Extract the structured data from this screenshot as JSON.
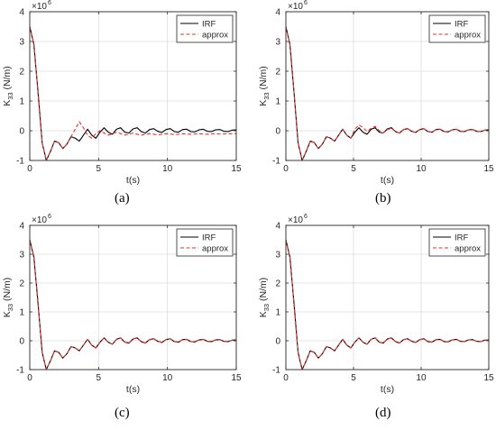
{
  "chart_data": [
    {
      "panel": "(a)",
      "type": "line",
      "xlabel": "t(s)",
      "ylabel_main": "K",
      "ylabel_sub": "33",
      "ylabel_unit": " (N/m)",
      "y_exponent_label": "×10",
      "y_exponent_power": "6",
      "xlim": [
        0,
        15
      ],
      "ylim": [
        -1,
        4
      ],
      "xticks": [
        0,
        5,
        10,
        15
      ],
      "yticks": [
        -1,
        0,
        1,
        2,
        3,
        4
      ],
      "grid": true,
      "legend_position": "top-right",
      "series": [
        {
          "name": "IRF",
          "color": "#000000",
          "dash": "solid",
          "x": [
            0,
            0.3,
            0.6,
            0.9,
            1.2,
            1.5,
            1.8,
            2.1,
            2.4,
            2.7,
            3.0,
            3.3,
            3.6,
            3.9,
            4.2,
            4.5,
            4.8,
            5.1,
            5.4,
            5.7,
            6.0,
            6.3,
            6.6,
            6.9,
            7.2,
            7.5,
            7.8,
            8.1,
            8.4,
            8.7,
            9.0,
            9.3,
            9.6,
            9.9,
            10.2,
            10.5,
            10.8,
            11.1,
            11.4,
            11.7,
            12.0,
            12.3,
            12.6,
            12.9,
            13.2,
            13.5,
            13.8,
            14.1,
            14.4,
            14.7,
            15.0
          ],
          "y": [
            3.5,
            2.9,
            1.3,
            -0.4,
            -1.0,
            -0.7,
            -0.35,
            -0.4,
            -0.6,
            -0.45,
            -0.2,
            -0.25,
            -0.35,
            -0.15,
            0.05,
            -0.15,
            -0.25,
            -0.05,
            0.1,
            -0.05,
            -0.12,
            0.05,
            0.1,
            -0.05,
            -0.08,
            0.06,
            0.1,
            -0.03,
            -0.08,
            0.04,
            0.07,
            -0.02,
            -0.06,
            0.04,
            0.07,
            -0.03,
            -0.05,
            0.04,
            0.05,
            -0.03,
            -0.04,
            0.03,
            0.05,
            -0.02,
            -0.03,
            0.03,
            0.04,
            -0.02,
            -0.03,
            0.02,
            0.03
          ]
        },
        {
          "name": "approx",
          "color": "#e8302c",
          "dash": "dashed",
          "x": [
            0,
            0.3,
            0.6,
            0.9,
            1.2,
            1.5,
            1.8,
            2.1,
            2.4,
            2.7,
            3.0,
            3.3,
            3.6,
            3.9,
            4.2,
            4.5,
            4.8,
            5.1,
            5.4,
            5.7,
            6.0,
            6.3,
            6.6,
            6.9,
            7.2,
            7.5,
            7.8,
            8.1,
            8.4,
            8.7,
            9.0,
            9.3,
            9.6,
            9.9,
            10.2,
            10.5,
            10.8,
            11.1,
            11.4,
            11.7,
            12.0,
            12.3,
            12.6,
            12.9,
            13.2,
            13.5,
            13.8,
            14.1,
            14.4,
            14.7,
            15.0
          ],
          "y": [
            3.5,
            2.9,
            1.3,
            -0.4,
            -1.0,
            -0.7,
            -0.35,
            -0.4,
            -0.6,
            -0.45,
            -0.2,
            0.05,
            0.3,
            0.1,
            -0.15,
            -0.25,
            -0.1,
            0.0,
            -0.08,
            -0.15,
            -0.1,
            -0.05,
            -0.1,
            -0.15,
            -0.12,
            -0.08,
            -0.12,
            -0.15,
            -0.12,
            -0.1,
            -0.12,
            -0.14,
            -0.12,
            -0.1,
            -0.11,
            -0.13,
            -0.12,
            -0.1,
            -0.11,
            -0.12,
            -0.11,
            -0.1,
            -0.11,
            -0.12,
            -0.11,
            -0.1,
            -0.11,
            -0.11,
            -0.1,
            -0.1,
            -0.1
          ]
        }
      ]
    },
    {
      "panel": "(b)",
      "type": "line",
      "xlabel": "t(s)",
      "ylabel_main": "K",
      "ylabel_sub": "33",
      "ylabel_unit": " (N/m)",
      "y_exponent_label": "×10",
      "y_exponent_power": "6",
      "xlim": [
        0,
        15
      ],
      "ylim": [
        -1,
        4
      ],
      "xticks": [
        0,
        5,
        10,
        15
      ],
      "yticks": [
        -1,
        0,
        1,
        2,
        3,
        4
      ],
      "grid": true,
      "legend_position": "top-right",
      "series": [
        {
          "name": "IRF",
          "color": "#000000",
          "dash": "solid",
          "x": [
            0,
            0.3,
            0.6,
            0.9,
            1.2,
            1.5,
            1.8,
            2.1,
            2.4,
            2.7,
            3.0,
            3.3,
            3.6,
            3.9,
            4.2,
            4.5,
            4.8,
            5.1,
            5.4,
            5.7,
            6.0,
            6.3,
            6.6,
            6.9,
            7.2,
            7.5,
            7.8,
            8.1,
            8.4,
            8.7,
            9.0,
            9.3,
            9.6,
            9.9,
            10.2,
            10.5,
            10.8,
            11.1,
            11.4,
            11.7,
            12.0,
            12.3,
            12.6,
            12.9,
            13.2,
            13.5,
            13.8,
            14.1,
            14.4,
            14.7,
            15.0
          ],
          "y": [
            3.5,
            2.9,
            1.3,
            -0.4,
            -1.0,
            -0.7,
            -0.35,
            -0.4,
            -0.6,
            -0.45,
            -0.2,
            -0.25,
            -0.35,
            -0.15,
            0.05,
            -0.15,
            -0.25,
            -0.05,
            0.1,
            -0.05,
            -0.12,
            0.05,
            0.1,
            -0.05,
            -0.08,
            0.06,
            0.1,
            -0.03,
            -0.08,
            0.04,
            0.07,
            -0.02,
            -0.06,
            0.04,
            0.07,
            -0.03,
            -0.05,
            0.04,
            0.05,
            -0.03,
            -0.04,
            0.03,
            0.05,
            -0.02,
            -0.03,
            0.03,
            0.04,
            -0.02,
            -0.03,
            0.02,
            0.03
          ]
        },
        {
          "name": "approx",
          "color": "#e8302c",
          "dash": "dashed",
          "x": [
            0,
            0.3,
            0.6,
            0.9,
            1.2,
            1.5,
            1.8,
            2.1,
            2.4,
            2.7,
            3.0,
            3.3,
            3.6,
            3.9,
            4.2,
            4.5,
            4.8,
            5.1,
            5.4,
            5.7,
            6.0,
            6.3,
            6.6,
            6.9,
            7.2,
            7.5,
            7.8,
            8.1,
            8.4,
            8.7,
            9.0,
            9.3,
            9.6,
            9.9,
            10.2,
            10.5,
            10.8,
            11.1,
            11.4,
            11.7,
            12.0,
            12.3,
            12.6,
            12.9,
            13.2,
            13.5,
            13.8,
            14.1,
            14.4,
            14.7,
            15.0
          ],
          "y": [
            3.5,
            2.9,
            1.3,
            -0.4,
            -1.0,
            -0.7,
            -0.35,
            -0.4,
            -0.6,
            -0.45,
            -0.2,
            -0.25,
            -0.35,
            -0.15,
            0.05,
            -0.15,
            -0.25,
            0.05,
            0.2,
            0.1,
            -0.02,
            0.08,
            0.15,
            0.0,
            -0.08,
            0.04,
            0.08,
            -0.03,
            -0.08,
            0.04,
            0.07,
            -0.02,
            -0.06,
            0.04,
            0.07,
            -0.03,
            -0.05,
            0.04,
            0.05,
            -0.03,
            -0.04,
            0.03,
            0.05,
            -0.02,
            -0.03,
            0.03,
            0.04,
            -0.02,
            -0.03,
            0.02,
            0.03
          ]
        }
      ]
    },
    {
      "panel": "(c)",
      "type": "line",
      "xlabel": "t(s)",
      "ylabel_main": "K",
      "ylabel_sub": "33",
      "ylabel_unit": " (N/m)",
      "y_exponent_label": "×10",
      "y_exponent_power": "6",
      "xlim": [
        0,
        15
      ],
      "ylim": [
        -1,
        4
      ],
      "xticks": [
        0,
        5,
        10,
        15
      ],
      "yticks": [
        -1,
        0,
        1,
        2,
        3,
        4
      ],
      "grid": true,
      "legend_position": "top-right",
      "series": [
        {
          "name": "IRF",
          "color": "#000000",
          "dash": "solid",
          "x": [
            0,
            0.3,
            0.6,
            0.9,
            1.2,
            1.5,
            1.8,
            2.1,
            2.4,
            2.7,
            3.0,
            3.3,
            3.6,
            3.9,
            4.2,
            4.5,
            4.8,
            5.1,
            5.4,
            5.7,
            6.0,
            6.3,
            6.6,
            6.9,
            7.2,
            7.5,
            7.8,
            8.1,
            8.4,
            8.7,
            9.0,
            9.3,
            9.6,
            9.9,
            10.2,
            10.5,
            10.8,
            11.1,
            11.4,
            11.7,
            12.0,
            12.3,
            12.6,
            12.9,
            13.2,
            13.5,
            13.8,
            14.1,
            14.4,
            14.7,
            15.0
          ],
          "y": [
            3.5,
            2.9,
            1.3,
            -0.4,
            -1.0,
            -0.7,
            -0.35,
            -0.4,
            -0.6,
            -0.45,
            -0.2,
            -0.25,
            -0.35,
            -0.15,
            0.05,
            -0.15,
            -0.25,
            -0.05,
            0.1,
            -0.05,
            -0.12,
            0.05,
            0.1,
            -0.05,
            -0.08,
            0.06,
            0.1,
            -0.03,
            -0.08,
            0.04,
            0.07,
            -0.02,
            -0.06,
            0.04,
            0.07,
            -0.03,
            -0.05,
            0.04,
            0.05,
            -0.03,
            -0.04,
            0.03,
            0.05,
            -0.02,
            -0.03,
            0.03,
            0.04,
            -0.02,
            -0.03,
            0.02,
            0.03
          ]
        },
        {
          "name": "approx",
          "color": "#e8302c",
          "dash": "dashed",
          "x": [
            0,
            0.3,
            0.6,
            0.9,
            1.2,
            1.5,
            1.8,
            2.1,
            2.4,
            2.7,
            3.0,
            3.3,
            3.6,
            3.9,
            4.2,
            4.5,
            4.8,
            5.1,
            5.4,
            5.7,
            6.0,
            6.3,
            6.6,
            6.9,
            7.2,
            7.5,
            7.8,
            8.1,
            8.4,
            8.7,
            9.0,
            9.3,
            9.6,
            9.9,
            10.2,
            10.5,
            10.8,
            11.1,
            11.4,
            11.7,
            12.0,
            12.3,
            12.6,
            12.9,
            13.2,
            13.5,
            13.8,
            14.1,
            14.4,
            14.7,
            15.0
          ],
          "y": [
            3.5,
            2.9,
            1.3,
            -0.4,
            -1.0,
            -0.7,
            -0.35,
            -0.4,
            -0.6,
            -0.45,
            -0.2,
            -0.25,
            -0.35,
            -0.15,
            0.05,
            -0.15,
            -0.25,
            -0.05,
            0.1,
            -0.05,
            -0.12,
            0.05,
            0.1,
            -0.05,
            -0.08,
            0.06,
            0.1,
            -0.03,
            -0.08,
            0.04,
            0.07,
            -0.02,
            -0.06,
            0.04,
            0.07,
            -0.03,
            -0.05,
            0.04,
            0.05,
            -0.03,
            -0.04,
            0.03,
            0.05,
            -0.02,
            -0.03,
            0.03,
            0.04,
            -0.02,
            -0.03,
            0.02,
            0.03
          ]
        }
      ]
    },
    {
      "panel": "(d)",
      "type": "line",
      "xlabel": "t(s)",
      "ylabel_main": "K",
      "ylabel_sub": "33",
      "ylabel_unit": " (N/m)",
      "y_exponent_label": "×10",
      "y_exponent_power": "6",
      "xlim": [
        0,
        15
      ],
      "ylim": [
        -1,
        4
      ],
      "xticks": [
        0,
        5,
        10,
        15
      ],
      "yticks": [
        -1,
        0,
        1,
        2,
        3,
        4
      ],
      "grid": true,
      "legend_position": "top-right",
      "series": [
        {
          "name": "IRF",
          "color": "#000000",
          "dash": "solid",
          "x": [
            0,
            0.3,
            0.6,
            0.9,
            1.2,
            1.5,
            1.8,
            2.1,
            2.4,
            2.7,
            3.0,
            3.3,
            3.6,
            3.9,
            4.2,
            4.5,
            4.8,
            5.1,
            5.4,
            5.7,
            6.0,
            6.3,
            6.6,
            6.9,
            7.2,
            7.5,
            7.8,
            8.1,
            8.4,
            8.7,
            9.0,
            9.3,
            9.6,
            9.9,
            10.2,
            10.5,
            10.8,
            11.1,
            11.4,
            11.7,
            12.0,
            12.3,
            12.6,
            12.9,
            13.2,
            13.5,
            13.8,
            14.1,
            14.4,
            14.7,
            15.0
          ],
          "y": [
            3.5,
            2.9,
            1.3,
            -0.4,
            -1.0,
            -0.7,
            -0.35,
            -0.4,
            -0.6,
            -0.45,
            -0.2,
            -0.25,
            -0.35,
            -0.15,
            0.05,
            -0.15,
            -0.25,
            -0.05,
            0.1,
            -0.05,
            -0.12,
            0.05,
            0.1,
            -0.05,
            -0.08,
            0.06,
            0.1,
            -0.03,
            -0.08,
            0.04,
            0.07,
            -0.02,
            -0.06,
            0.04,
            0.07,
            -0.03,
            -0.05,
            0.04,
            0.05,
            -0.03,
            -0.04,
            0.03,
            0.05,
            -0.02,
            -0.03,
            0.03,
            0.04,
            -0.02,
            -0.03,
            0.02,
            0.03
          ]
        },
        {
          "name": "approx",
          "color": "#e8302c",
          "dash": "dashed",
          "x": [
            0,
            0.3,
            0.6,
            0.9,
            1.2,
            1.5,
            1.8,
            2.1,
            2.4,
            2.7,
            3.0,
            3.3,
            3.6,
            3.9,
            4.2,
            4.5,
            4.8,
            5.1,
            5.4,
            5.7,
            6.0,
            6.3,
            6.6,
            6.9,
            7.2,
            7.5,
            7.8,
            8.1,
            8.4,
            8.7,
            9.0,
            9.3,
            9.6,
            9.9,
            10.2,
            10.5,
            10.8,
            11.1,
            11.4,
            11.7,
            12.0,
            12.3,
            12.6,
            12.9,
            13.2,
            13.5,
            13.8,
            14.1,
            14.4,
            14.7,
            15.0
          ],
          "y": [
            3.5,
            2.9,
            1.3,
            -0.4,
            -1.0,
            -0.7,
            -0.35,
            -0.4,
            -0.6,
            -0.45,
            -0.2,
            -0.25,
            -0.35,
            -0.15,
            0.05,
            -0.15,
            -0.25,
            -0.05,
            0.1,
            -0.05,
            -0.12,
            0.05,
            0.1,
            -0.05,
            -0.08,
            0.06,
            0.1,
            -0.03,
            -0.08,
            0.04,
            0.07,
            -0.02,
            -0.06,
            0.04,
            0.07,
            -0.03,
            -0.05,
            0.04,
            0.05,
            -0.03,
            -0.04,
            0.03,
            0.05,
            -0.02,
            -0.03,
            0.03,
            0.04,
            -0.02,
            -0.03,
            0.02,
            0.03
          ]
        }
      ]
    }
  ]
}
